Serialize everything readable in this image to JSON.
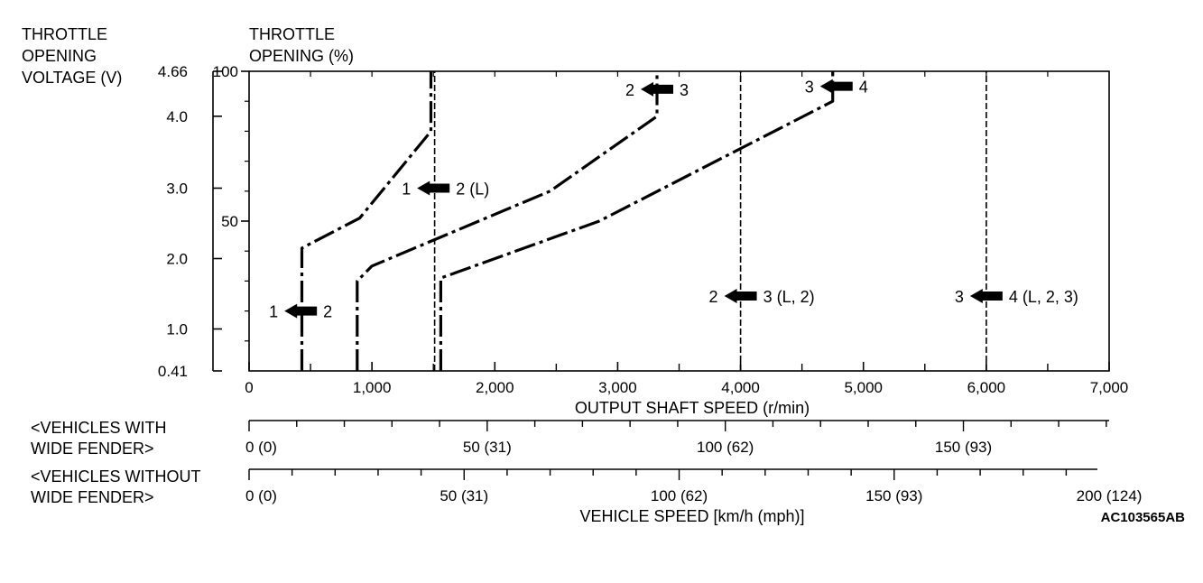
{
  "chart_data": {
    "type": "line",
    "title": "",
    "left_axis": {
      "title_lines": [
        "THROTTLE",
        "OPENING",
        "VOLTAGE (V)"
      ],
      "ticks": [
        {
          "label": "4.66",
          "pct": 100
        },
        {
          "label": "4.0",
          "pct": 85
        },
        {
          "label": "3.0",
          "pct": 61
        },
        {
          "label": "2.0",
          "pct": 37.5
        },
        {
          "label": "1.0",
          "pct": 14
        },
        {
          "label": "0.41",
          "pct": 0
        }
      ]
    },
    "y_axis": {
      "title_lines": [
        "THROTTLE",
        "OPENING (%)"
      ],
      "range": [
        0,
        100
      ],
      "ticks": [
        {
          "label": "100",
          "value": 100
        },
        {
          "label": "50",
          "value": 50
        }
      ]
    },
    "x_axis": {
      "label": "OUTPUT SHAFT SPEED (r/min)",
      "range": [
        0,
        7000
      ],
      "ticks": [
        {
          "label": "0",
          "value": 0
        },
        {
          "label": "1,000",
          "value": 1000
        },
        {
          "label": "2,000",
          "value": 2000
        },
        {
          "label": "3,000",
          "value": 3000
        },
        {
          "label": "4,000",
          "value": 4000
        },
        {
          "label": "5,000",
          "value": 5000
        },
        {
          "label": "6,000",
          "value": 6000
        },
        {
          "label": "7,000",
          "value": 7000
        }
      ]
    },
    "series": [
      {
        "name": "1-2 upshift",
        "style": "dash-dot",
        "points": [
          [
            430,
            0
          ],
          [
            430,
            41
          ],
          [
            900,
            51
          ],
          [
            1480,
            80
          ],
          [
            1480,
            100
          ]
        ]
      },
      {
        "name": "2-3 upshift",
        "style": "dash-dot",
        "points": [
          [
            880,
            0
          ],
          [
            880,
            30
          ],
          [
            1000,
            35
          ],
          [
            2450,
            60
          ],
          [
            3320,
            85
          ],
          [
            3320,
            100
          ]
        ]
      },
      {
        "name": "3-4 upshift",
        "style": "dash-dot",
        "points": [
          [
            1560,
            0
          ],
          [
            1560,
            31
          ],
          [
            2850,
            50
          ],
          [
            4750,
            90
          ],
          [
            4750,
            100
          ]
        ]
      },
      {
        "name": "1-2 (L)",
        "style": "dashed",
        "points": [
          [
            1510,
            0
          ],
          [
            1510,
            100
          ]
        ]
      },
      {
        "name": "2-3 (L, 2)",
        "style": "dashed",
        "points": [
          [
            4000,
            0
          ],
          [
            4000,
            100
          ]
        ]
      },
      {
        "name": "3-4 (L, 2, 3)",
        "style": "dashed",
        "points": [
          [
            6000,
            0
          ],
          [
            6000,
            100
          ]
        ]
      }
    ],
    "annotations": [
      {
        "from": "1",
        "to": "2",
        "x": 420,
        "y": 20
      },
      {
        "from": "1",
        "to": "2 (L)",
        "x": 1500,
        "y": 61
      },
      {
        "from": "2",
        "to": "3",
        "x": 3320,
        "y": 94
      },
      {
        "from": "3",
        "to": "4",
        "x": 4780,
        "y": 95
      },
      {
        "from": "2",
        "to": "3 (L, 2)",
        "x": 4000,
        "y": 25
      },
      {
        "from": "3",
        "to": "4 (L, 2, 3)",
        "x": 6000,
        "y": 25
      }
    ],
    "speed_scales": [
      {
        "title_lines": [
          "<VEHICLES WITH",
          "WIDE FENDER>"
        ],
        "kmh_per_rpm": 0.0258,
        "labels": [
          {
            "text": "0 (0)",
            "kmh": 0
          },
          {
            "text": "50 (31)",
            "kmh": 50
          },
          {
            "text": "100 (62)",
            "kmh": 100
          },
          {
            "text": "150 (93)",
            "kmh": 150
          }
        ]
      },
      {
        "title_lines": [
          "<VEHICLES WITHOUT",
          "WIDE FENDER>"
        ],
        "kmh_per_rpm": 0.02857,
        "labels": [
          {
            "text": "0 (0)",
            "kmh": 0
          },
          {
            "text": "50 (31)",
            "kmh": 50
          },
          {
            "text": "100 (62)",
            "kmh": 100
          },
          {
            "text": "150 (93)",
            "kmh": 150
          },
          {
            "text": "200 (124)",
            "kmh": 200
          }
        ]
      }
    ],
    "speed_axis_label": "VEHICLE SPEED [km/h (mph)]",
    "figure_code": "AC103565AB"
  }
}
